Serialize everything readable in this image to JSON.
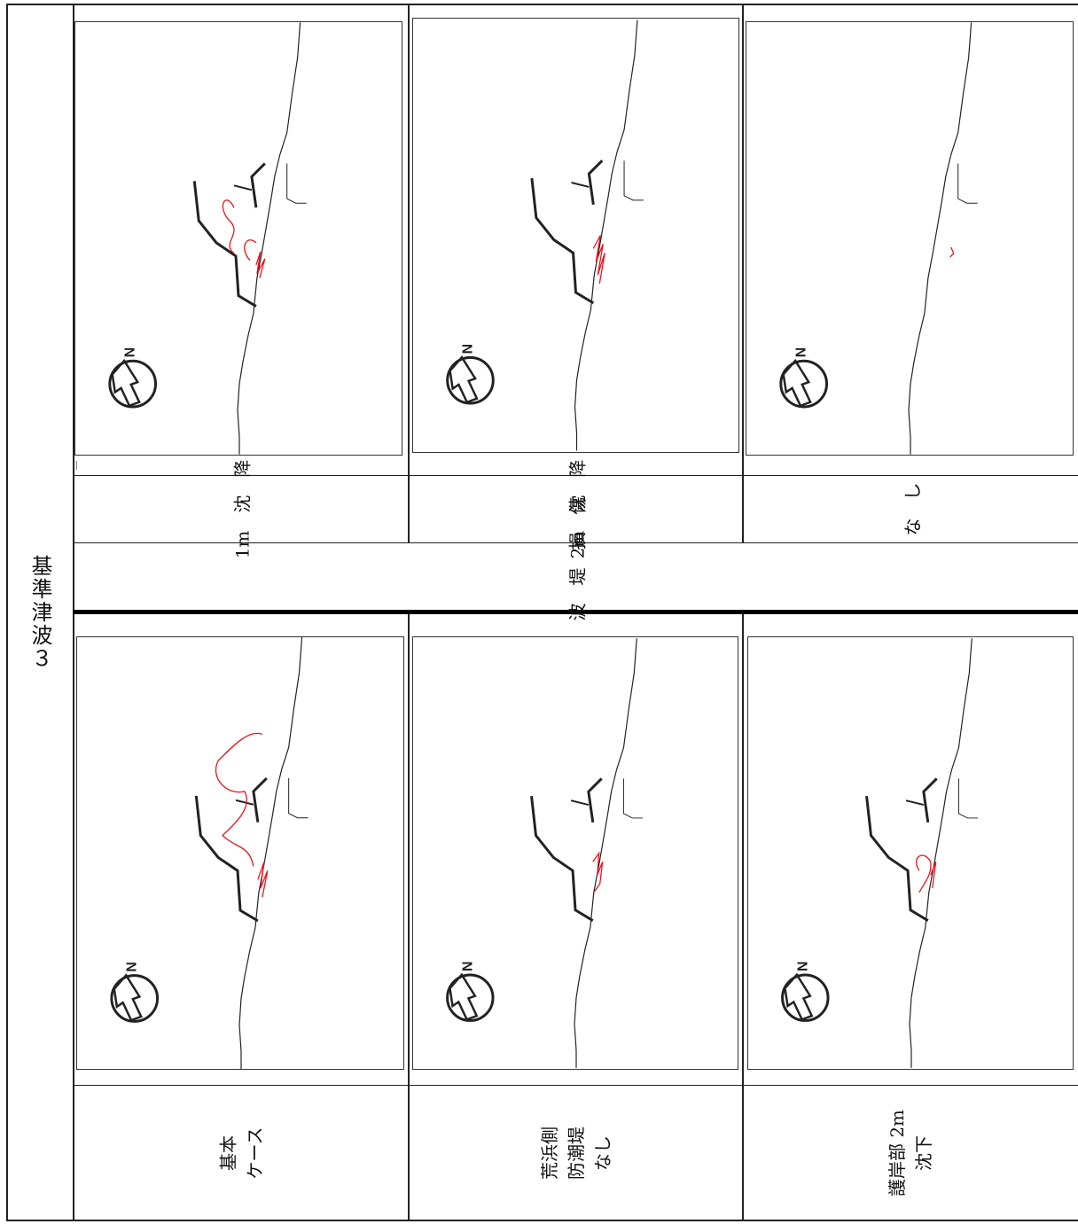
{
  "side_label": "基準津波３",
  "top_row": {
    "captions": [
      "1m　沈　降",
      "2m　沈　降",
      "な　し"
    ]
  },
  "section_label": "防　波　堤　損　傷",
  "bottom_row": {
    "captions": [
      [
        "基本",
        "ケース"
      ],
      [
        "荒浜側",
        "防潮堤",
        "なし"
      ],
      [
        "護岸部 2m",
        "沈下"
      ]
    ]
  },
  "north_label": "N",
  "colors": {
    "trace": "#e8141c",
    "line": "#222222"
  }
}
